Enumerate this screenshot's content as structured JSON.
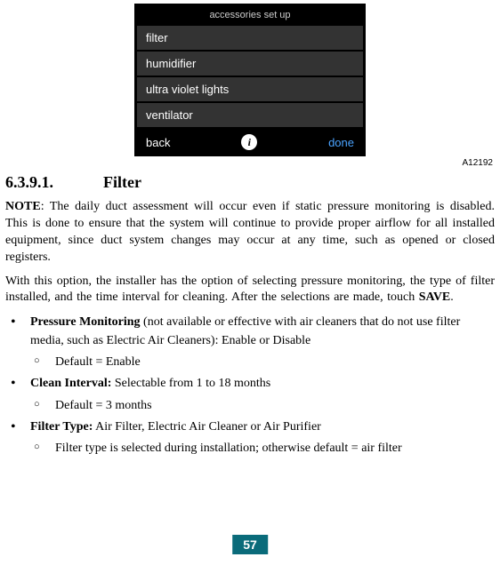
{
  "device": {
    "header": "accessories set up",
    "items": [
      "filter",
      "humidifier",
      "ultra violet lights",
      "ventilator"
    ],
    "back": "back",
    "done": "done",
    "info": "i"
  },
  "figureId": "A12192",
  "heading": {
    "number": "6.3.9.1.",
    "title": "Filter"
  },
  "note": {
    "label": "NOTE",
    "text": ":  The daily duct assessment will occur even if static pressure monitoring is disabled. This is done to ensure that the system will continue to provide proper airflow for all installed equipment, since duct system changes may occur at any time, such as opened or closed registers."
  },
  "para2": {
    "pre": "With this option, the installer has the option of selecting pressure monitoring, the type of filter installed, and the time interval for cleaning. After the selections are made, touch ",
    "save": "SAVE",
    "post": "."
  },
  "bullets": {
    "b1": {
      "label": "Pressure Monitoring",
      "text": " (not available or effective with air cleaners that do not use filter media, such as Electric Air Cleaners): Enable or Disable",
      "sub": "Default = Enable"
    },
    "b2": {
      "label": "Clean Interval:",
      "text": " Selectable from 1 to 18 months",
      "sub": "Default = 3 months"
    },
    "b3": {
      "label": "Filter Type:",
      "text": " Air Filter, Electric Air Cleaner or Air Purifier",
      "sub": "Filter type is selected during installation; otherwise default = air filter"
    }
  },
  "pageNumber": "57",
  "colors": {
    "pageBadgeBg": "#0a6b7a",
    "doneLink": "#4aa3ff",
    "menuBg": "#333333"
  }
}
